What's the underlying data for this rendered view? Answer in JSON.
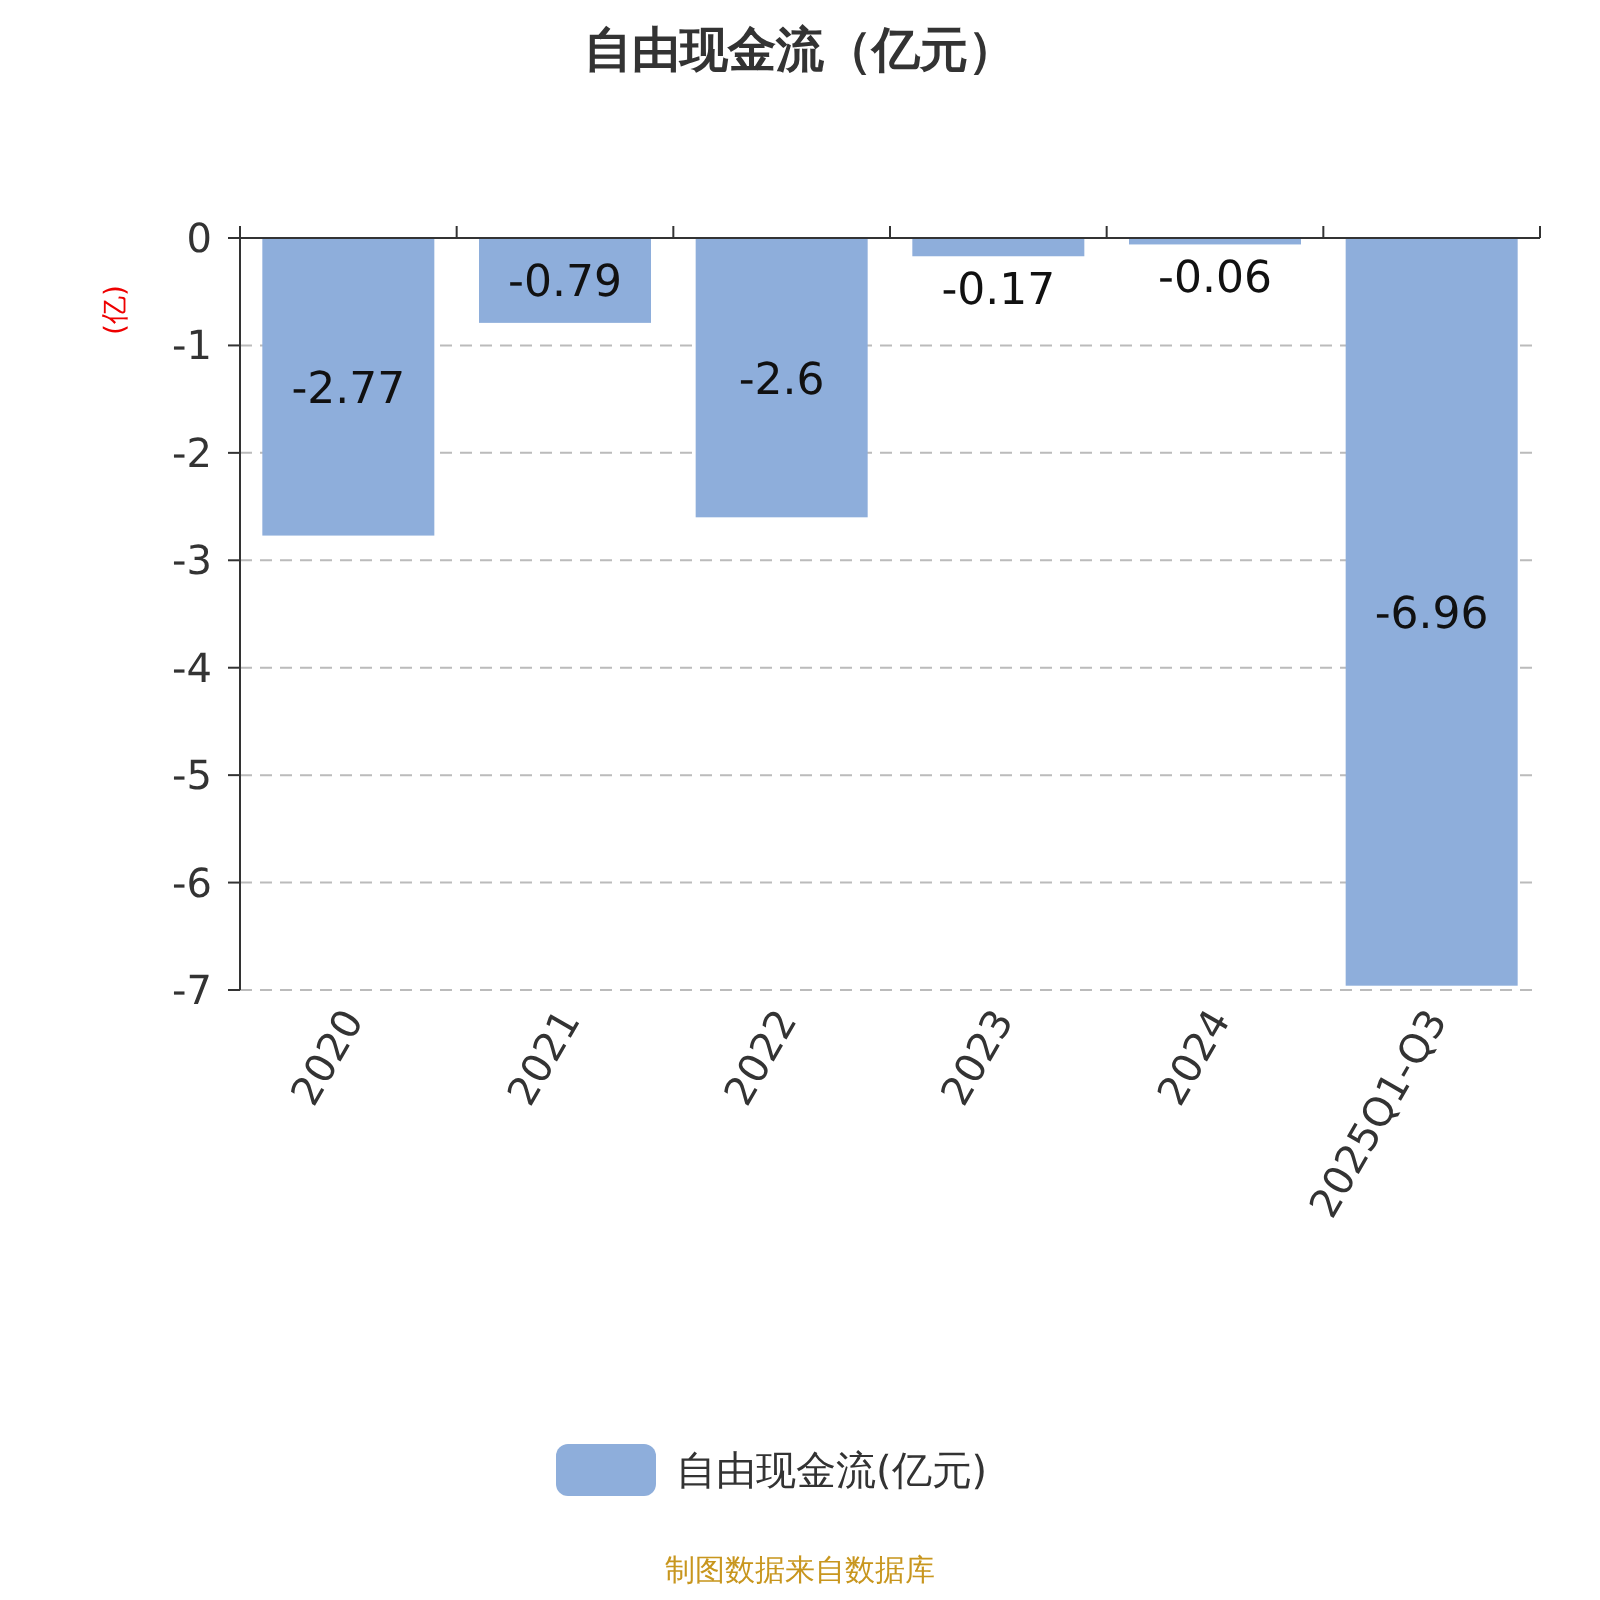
{
  "chart_data": {
    "type": "bar",
    "title": "自由现金流（亿元）",
    "ylabel": "(亿)",
    "categories": [
      "2020",
      "2021",
      "2022",
      "2023",
      "2024",
      "2025Q1-Q3"
    ],
    "series": [
      {
        "name": "自由现金流(亿元)",
        "color": "#8eaedb",
        "values": [
          -2.77,
          -0.79,
          -2.6,
          -0.17,
          -0.06,
          -6.96
        ]
      }
    ],
    "ylim": [
      -7,
      0
    ],
    "yticks": [
      0,
      -1,
      -2,
      -3,
      -4,
      -5,
      -6,
      -7
    ],
    "grid": "y",
    "legend": "bottom",
    "data_labels": true,
    "annotations": [
      "制图数据来自数据库"
    ]
  }
}
